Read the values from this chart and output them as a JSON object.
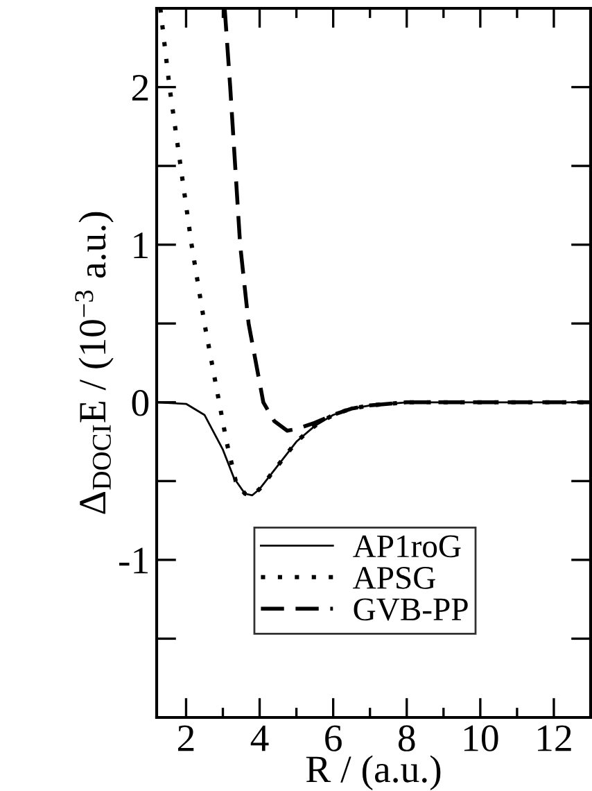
{
  "chart_data": {
    "type": "line",
    "xlabel": "R / (a.u.)",
    "ylabel": "Δ$_{DOCI}$E / (10$^{−3}$ a.u.)",
    "xlim": [
      1.2,
      13
    ],
    "xticks": [
      2,
      4,
      6,
      8,
      10,
      12
    ],
    "ylim": [
      -2,
      2.5
    ],
    "yticks": [
      {
        "value": -2,
        "label": null
      },
      {
        "value": -1.5,
        "label": null
      },
      {
        "value": -1,
        "label": "-1"
      },
      {
        "value": -0.5,
        "label": null
      },
      0,
      {
        "value": 0.5,
        "label": null
      },
      1,
      {
        "value": 1.5,
        "label": null
      },
      2
    ],
    "grid": false,
    "legend": "bottom",
    "series": [
      {
        "name": "AP1roG",
        "color": "#000000",
        "line_style": "solid",
        "x": [
          1.2,
          2.0,
          2.5,
          3.0,
          3.3,
          3.6,
          3.8,
          4.0,
          4.5,
          5.0,
          5.5,
          6.0,
          6.5,
          7.0,
          7.5,
          8.0,
          13.0
        ],
        "values": [
          0,
          -0.01,
          -0.08,
          -0.3,
          -0.48,
          -0.58,
          -0.59,
          -0.55,
          -0.4,
          -0.25,
          -0.15,
          -0.08,
          -0.04,
          -0.02,
          -0.01,
          0,
          0
        ]
      },
      {
        "name": "APSG",
        "color": "#000000",
        "line_style": "dotted",
        "x": [
          1.3,
          1.55,
          1.85,
          2.15,
          2.5,
          2.9,
          3.1,
          3.35,
          3.6,
          3.8,
          4.0,
          4.5,
          5.0,
          5.5,
          6.0,
          6.5,
          7.0,
          7.5,
          8.0,
          13.0
        ],
        "values": [
          2.5,
          2.0,
          1.5,
          1.0,
          0.5,
          0.0,
          -0.25,
          -0.5,
          -0.58,
          -0.59,
          -0.55,
          -0.4,
          -0.25,
          -0.15,
          -0.08,
          -0.04,
          -0.02,
          -0.01,
          0,
          0
        ]
      },
      {
        "name": "GVB-PP",
        "color": "#000000",
        "line_style": "dashed",
        "x": [
          3.05,
          3.2,
          3.47,
          3.7,
          4.1,
          4.4,
          4.75,
          5.0,
          5.5,
          6.0,
          6.5,
          7.0,
          7.5,
          8.0,
          13.0
        ],
        "values": [
          2.5,
          2.0,
          1.0,
          0.5,
          0.0,
          -0.12,
          -0.18,
          -0.17,
          -0.13,
          -0.08,
          -0.04,
          -0.02,
          -0.01,
          0,
          0
        ]
      }
    ]
  }
}
